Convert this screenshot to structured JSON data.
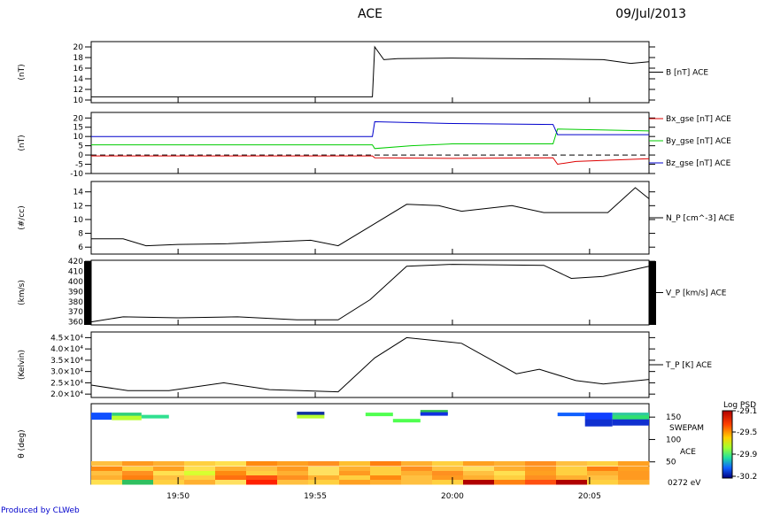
{
  "title": "ACE",
  "date": "09/Jul/2013",
  "footer": "Produced by CLWeb",
  "time_axis": {
    "start": "19:46:50",
    "end": "20:07:10",
    "tick_labels": [
      "19:50",
      "19:55",
      "20:00",
      "20:05"
    ]
  },
  "colors": {
    "bx": "#dd0000",
    "by": "#00cc00",
    "bz": "#0000cc",
    "line": "#000000"
  },
  "chart_data": [
    {
      "type": "line",
      "panel": "B",
      "ylabel": "(nT)",
      "ylim": [
        9.5,
        21
      ],
      "yticks": [
        "20",
        "18",
        "16",
        "14",
        "12",
        "10"
      ],
      "series": [
        {
          "name": "B [nT] ACE",
          "x": [
            "19:46:50",
            "19:57:05",
            "19:57:10",
            "19:57:30",
            "19:58:00",
            "20:00:00",
            "20:02:00",
            "20:04:00",
            "20:05:30",
            "20:06:30",
            "20:07:10"
          ],
          "values": [
            10.6,
            10.6,
            20.0,
            17.6,
            17.8,
            17.9,
            17.8,
            17.7,
            17.6,
            16.9,
            17.2
          ]
        }
      ]
    },
    {
      "type": "line",
      "panel": "B_gse",
      "ylabel": "(nT)",
      "ylim": [
        -10,
        23
      ],
      "yticks": [
        "20",
        "15",
        "10",
        "5",
        "0",
        "-5",
        "-10"
      ],
      "zero_dashed": true,
      "series": [
        {
          "name": "Bx_gse [nT] ACE",
          "x": [
            "19:46:50",
            "19:57:05",
            "19:57:10",
            "20:00:00",
            "20:03:40",
            "20:03:50",
            "20:04:30",
            "20:07:10"
          ],
          "values": [
            -0.5,
            -0.5,
            -1.5,
            -1.8,
            -1.5,
            -5.0,
            -3.5,
            -2.0
          ]
        },
        {
          "name": "By_gse [nT] ACE",
          "x": [
            "19:46:50",
            "19:57:05",
            "19:57:10",
            "19:58:30",
            "20:00:00",
            "20:03:40",
            "20:03:50",
            "20:07:10"
          ],
          "values": [
            5.5,
            5.5,
            3.5,
            5.0,
            6.0,
            6.0,
            14.0,
            13.0
          ]
        },
        {
          "name": "Bz_gse [nT] ACE",
          "x": [
            "19:46:50",
            "19:57:05",
            "19:57:10",
            "20:00:00",
            "20:03:40",
            "20:03:50",
            "20:05:30",
            "20:07:10"
          ],
          "values": [
            10.0,
            10.0,
            18.0,
            17.0,
            16.5,
            11.0,
            11.0,
            11.0
          ]
        }
      ]
    },
    {
      "type": "line",
      "panel": "N_P",
      "ylabel": "(#/cc)",
      "ylim": [
        5,
        15.5
      ],
      "yticks": [
        "14",
        "12",
        "10",
        "8",
        "6"
      ],
      "series": [
        {
          "name": "N_P [cm^-3] ACE",
          "x": [
            "19:46:50",
            "19:48:00",
            "19:48:50",
            "19:50:00",
            "19:51:50",
            "19:54:50",
            "19:55:50",
            "19:57:00",
            "19:58:20",
            "19:59:30",
            "20:00:20",
            "20:02:10",
            "20:03:20",
            "20:05:40",
            "20:06:40",
            "20:07:10"
          ],
          "values": [
            7.2,
            7.2,
            6.2,
            6.4,
            6.5,
            7.0,
            6.2,
            9.0,
            12.2,
            12.0,
            11.2,
            12.0,
            11.0,
            11.0,
            14.6,
            13.0
          ]
        }
      ]
    },
    {
      "type": "line",
      "panel": "V_P",
      "ylabel": "(km/s)",
      "ylim": [
        357,
        421
      ],
      "yticks": [
        "420",
        "410",
        "400",
        "390",
        "380",
        "370",
        "360"
      ],
      "series": [
        {
          "name": "V_P [km/s] ACE",
          "x": [
            "19:46:50",
            "19:48:00",
            "19:50:00",
            "19:52:10",
            "19:54:20",
            "19:55:50",
            "19:57:00",
            "19:58:20",
            "20:00:00",
            "20:03:20",
            "20:04:20",
            "20:05:30",
            "20:07:10"
          ],
          "values": [
            360,
            365,
            364,
            365,
            362,
            362,
            382,
            415,
            417,
            416,
            403,
            405,
            415
          ]
        }
      ]
    },
    {
      "type": "line",
      "panel": "T_P",
      "ylabel": "(Kelvin)",
      "ylim": [
        18500,
        47500
      ],
      "yticks": [
        "4.5",
        "4.0",
        "3.5",
        "3.0",
        "2.5",
        "2.0"
      ],
      "ytick_suffix": "×10⁴",
      "series": [
        {
          "name": "T_P [K] ACE",
          "x": [
            "19:46:50",
            "19:48:10",
            "19:49:40",
            "19:51:40",
            "19:53:20",
            "19:55:50",
            "19:57:10",
            "19:58:20",
            "20:00:20",
            "20:02:20",
            "20:03:10",
            "20:04:30",
            "20:05:30",
            "20:07:10"
          ],
          "values": [
            24000,
            21500,
            21500,
            25000,
            22000,
            21000,
            36000,
            45000,
            42500,
            29000,
            31000,
            26000,
            24500,
            26500
          ]
        }
      ]
    },
    {
      "type": "heatmap",
      "panel": "SWEPAM",
      "ylabel": "θ (deg)",
      "yticks": [
        "150",
        "100",
        "50"
      ],
      "right_labels": [
        "SWEPAM",
        "ACE",
        "0272 eV"
      ],
      "colorbar": {
        "title": "Log PSD",
        "ticks": [
          "-29.1",
          "-29.5",
          "-29.9",
          "-30.2"
        ]
      },
      "rows": [
        {
          "t0": "19:46:50",
          "t1": "19:47:35",
          "lat": 160,
          "hgt": 8,
          "color": "#1050ff"
        },
        {
          "t0": "19:47:35",
          "t1": "19:48:40",
          "lat": 160,
          "hgt": 6,
          "color": "#30d07a"
        },
        {
          "t0": "19:47:35",
          "t1": "19:48:40",
          "lat": 153,
          "hgt": 5,
          "color": "#b8ff30"
        },
        {
          "t0": "19:48:40",
          "t1": "19:49:40",
          "lat": 155,
          "hgt": 4,
          "color": "#30e090"
        },
        {
          "t0": "19:54:20",
          "t1": "19:55:20",
          "lat": 162,
          "hgt": 4,
          "color": "#1030a0"
        },
        {
          "t0": "19:54:20",
          "t1": "19:55:20",
          "lat": 155,
          "hgt": 4,
          "color": "#b8ff30"
        },
        {
          "t0": "19:56:50",
          "t1": "19:57:50",
          "lat": 160,
          "hgt": 4,
          "color": "#50ff50"
        },
        {
          "t0": "19:57:50",
          "t1": "19:58:50",
          "lat": 146,
          "hgt": 4,
          "color": "#50ff50"
        },
        {
          "t0": "19:58:50",
          "t1": "19:59:50",
          "lat": 166,
          "hgt": 5,
          "color": "#30c050"
        },
        {
          "t0": "19:58:50",
          "t1": "19:59:50",
          "lat": 161,
          "hgt": 4,
          "color": "#1030e0"
        },
        {
          "t0": "20:03:50",
          "t1": "20:04:50",
          "lat": 160,
          "hgt": 4,
          "color": "#1060ff"
        },
        {
          "t0": "20:04:50",
          "t1": "20:05:50",
          "lat": 160,
          "hgt": 8,
          "color": "#1040ff"
        },
        {
          "t0": "20:04:50",
          "t1": "20:05:50",
          "lat": 145,
          "hgt": 8,
          "color": "#1030d0"
        },
        {
          "t0": "20:05:50",
          "t1": "20:07:10",
          "lat": 160,
          "hgt": 6,
          "color": "#30c8a0"
        },
        {
          "t0": "20:05:50",
          "t1": "20:07:10",
          "lat": 154,
          "hgt": 6,
          "color": "#30e070"
        },
        {
          "t0": "20:05:50",
          "t1": "20:07:10",
          "lat": 145,
          "hgt": 7,
          "color": "#1030d0"
        }
      ],
      "band": {
        "row_colors": [
          [
            "#ffc040",
            "#ff9a20",
            "#ffb030",
            "#ffd040",
            "#ffe050",
            "#ff8a10",
            "#ffa020",
            "#ff9020",
            "#ffc030",
            "#ff8010",
            "#ffb030",
            "#ffd040",
            "#ffa020",
            "#ffb030",
            "#ff9020",
            "#ffc040",
            "#ffd040",
            "#ffa020"
          ],
          [
            "#ff8a10",
            "#ffd040",
            "#ffa020",
            "#ffe050",
            "#ffb030",
            "#ffc040",
            "#ff9a20",
            "#ffe060",
            "#ffb030",
            "#ffd040",
            "#ff9020",
            "#ffc040",
            "#ffe060",
            "#ffb030",
            "#ff9a20",
            "#ffd040",
            "#ff8010",
            "#ffa020"
          ],
          [
            "#ffc040",
            "#ff9020",
            "#ffe050",
            "#d8ff30",
            "#ff8a10",
            "#ffd040",
            "#ffb030",
            "#ffe060",
            "#ff9a20",
            "#ffd040",
            "#ffb030",
            "#ff9020",
            "#ffc040",
            "#ffe050",
            "#ffa020",
            "#ffd040",
            "#ffb030",
            "#ff9a20"
          ],
          [
            "#ffb030",
            "#ff8010",
            "#ffc040",
            "#ffd040",
            "#ff7010",
            "#ff5010",
            "#ff9020",
            "#ffb030",
            "#ffd040",
            "#ff8a10",
            "#ffc040",
            "#ff9a20",
            "#ffb030",
            "#ffd040",
            "#ff9020",
            "#ffb030",
            "#ffc040",
            "#ff9a20"
          ],
          [
            "#ffe050",
            "#30c060",
            "#ffd040",
            "#ffb030",
            "#ffe060",
            "#ff2000",
            "#ffc040",
            "#ffd040",
            "#ffa020",
            "#ffb030",
            "#ffc040",
            "#ffd040",
            "#b00000",
            "#ff8010",
            "#ff5010",
            "#b00000",
            "#ffd040",
            "#ffb030"
          ]
        ]
      }
    }
  ]
}
